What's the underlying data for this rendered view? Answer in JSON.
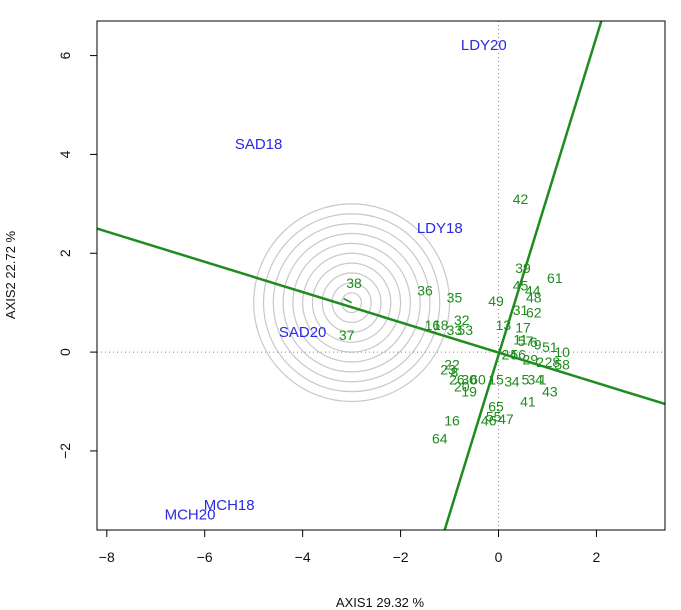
{
  "chart_data": {
    "type": "scatter",
    "xlabel": "AXIS1 29.32 %",
    "ylabel": "AXIS2 22.72 %",
    "xlim": [
      -8.2,
      3.4
    ],
    "ylim": [
      -3.6,
      6.7
    ],
    "x_ticks": [
      -8,
      -6,
      -4,
      -2,
      0,
      2
    ],
    "y_ticks": [
      -2,
      0,
      2,
      4,
      6
    ],
    "x_tick_labels": [
      "−8",
      "−6",
      "−4",
      "−2",
      "0",
      "2"
    ],
    "y_tick_labels": [
      "−2",
      "0",
      "2",
      "4",
      "6"
    ],
    "reference_lines": {
      "x": 0,
      "y": 0,
      "style": "dotted"
    },
    "concentric_circles": {
      "center": [
        -3.0,
        1.0
      ],
      "radii": [
        0.2,
        0.4,
        0.6,
        0.8,
        1.0,
        1.2,
        1.4,
        1.6,
        1.8,
        2.0
      ],
      "color": "#c8c8c8"
    },
    "axis_lines": [
      {
        "points": [
          [
            -8.2,
            2.5
          ],
          [
            3.4,
            -1.05
          ]
        ],
        "color": "#1e8c1e"
      },
      {
        "points": [
          [
            -1.1,
            -3.6
          ],
          [
            2.1,
            6.7
          ]
        ],
        "color": "#1e8c1e"
      }
    ],
    "environments": [
      {
        "label": "LDY20",
        "x": -0.3,
        "y": 6.2
      },
      {
        "label": "SAD18",
        "x": -4.9,
        "y": 4.2
      },
      {
        "label": "LDY18",
        "x": -1.2,
        "y": 2.5
      },
      {
        "label": "SAD20",
        "x": -4.0,
        "y": 0.4
      },
      {
        "label": "MCH18",
        "x": -5.5,
        "y": -3.1
      },
      {
        "label": "MCH20",
        "x": -6.3,
        "y": -3.3
      }
    ],
    "environment_color": "#2a2ae0",
    "genotypes": [
      {
        "label": "42",
        "x": 0.45,
        "y": 3.1
      },
      {
        "label": "39",
        "x": 0.5,
        "y": 1.7
      },
      {
        "label": "61",
        "x": 1.15,
        "y": 1.5
      },
      {
        "label": "45",
        "x": 0.45,
        "y": 1.35
      },
      {
        "label": "44",
        "x": 0.7,
        "y": 1.25
      },
      {
        "label": "48",
        "x": 0.72,
        "y": 1.1
      },
      {
        "label": "49",
        "x": -0.05,
        "y": 1.03
      },
      {
        "label": "31",
        "x": 0.45,
        "y": 0.85
      },
      {
        "label": "62",
        "x": 0.72,
        "y": 0.8
      },
      {
        "label": "38",
        "x": -2.95,
        "y": 1.4
      },
      {
        "label": "36",
        "x": -1.5,
        "y": 1.25
      },
      {
        "label": "35",
        "x": -0.9,
        "y": 1.1
      },
      {
        "label": "32",
        "x": -0.75,
        "y": 0.65
      },
      {
        "label": "13",
        "x": 0.1,
        "y": 0.55
      },
      {
        "label": "17",
        "x": 0.5,
        "y": 0.5
      },
      {
        "label": "16",
        "x": -1.35,
        "y": 0.55
      },
      {
        "label": "18",
        "x": -1.18,
        "y": 0.55
      },
      {
        "label": "33",
        "x": -0.9,
        "y": 0.45
      },
      {
        "label": "53",
        "x": -0.68,
        "y": 0.45
      },
      {
        "label": "37",
        "x": -3.1,
        "y": 0.35
      },
      {
        "label": "11",
        "x": 0.45,
        "y": 0.25
      },
      {
        "label": "57",
        "x": 0.55,
        "y": 0.22
      },
      {
        "label": "6",
        "x": 0.72,
        "y": 0.2
      },
      {
        "label": "9",
        "x": 0.8,
        "y": 0.15
      },
      {
        "label": "51",
        "x": 1.05,
        "y": 0.1
      },
      {
        "label": "10",
        "x": 1.3,
        "y": 0.0
      },
      {
        "label": "24",
        "x": 0.22,
        "y": -0.05
      },
      {
        "label": "56",
        "x": 0.4,
        "y": -0.05
      },
      {
        "label": "29",
        "x": 0.65,
        "y": -0.15
      },
      {
        "label": "2",
        "x": 0.85,
        "y": -0.2
      },
      {
        "label": "28",
        "x": 1.1,
        "y": -0.2
      },
      {
        "label": "58",
        "x": 1.3,
        "y": -0.25
      },
      {
        "label": "22",
        "x": -0.95,
        "y": -0.25
      },
      {
        "label": "23",
        "x": -1.03,
        "y": -0.35
      },
      {
        "label": "8",
        "x": -0.9,
        "y": -0.4
      },
      {
        "label": "26",
        "x": -0.85,
        "y": -0.55
      },
      {
        "label": "30",
        "x": -0.6,
        "y": -0.55
      },
      {
        "label": "60",
        "x": -0.42,
        "y": -0.55
      },
      {
        "label": "15",
        "x": -0.05,
        "y": -0.55
      },
      {
        "label": "3",
        "x": 0.2,
        "y": -0.6
      },
      {
        "label": "4",
        "x": 0.35,
        "y": -0.6
      },
      {
        "label": "5",
        "x": 0.55,
        "y": -0.55
      },
      {
        "label": "34",
        "x": 0.75,
        "y": -0.55
      },
      {
        "label": "1",
        "x": 0.9,
        "y": -0.55
      },
      {
        "label": "20",
        "x": -0.75,
        "y": -0.7
      },
      {
        "label": "19",
        "x": -0.6,
        "y": -0.8
      },
      {
        "label": "43",
        "x": 1.05,
        "y": -0.8
      },
      {
        "label": "41",
        "x": 0.6,
        "y": -1.0
      },
      {
        "label": "65",
        "x": -0.05,
        "y": -1.1
      },
      {
        "label": "55",
        "x": -0.1,
        "y": -1.3
      },
      {
        "label": "47",
        "x": 0.15,
        "y": -1.35
      },
      {
        "label": "46",
        "x": -0.2,
        "y": -1.38
      },
      {
        "label": "16",
        "x": -0.95,
        "y": -1.38
      },
      {
        "label": "64",
        "x": -1.2,
        "y": -1.75
      }
    ],
    "genotype_color": "#1e8c1e"
  }
}
